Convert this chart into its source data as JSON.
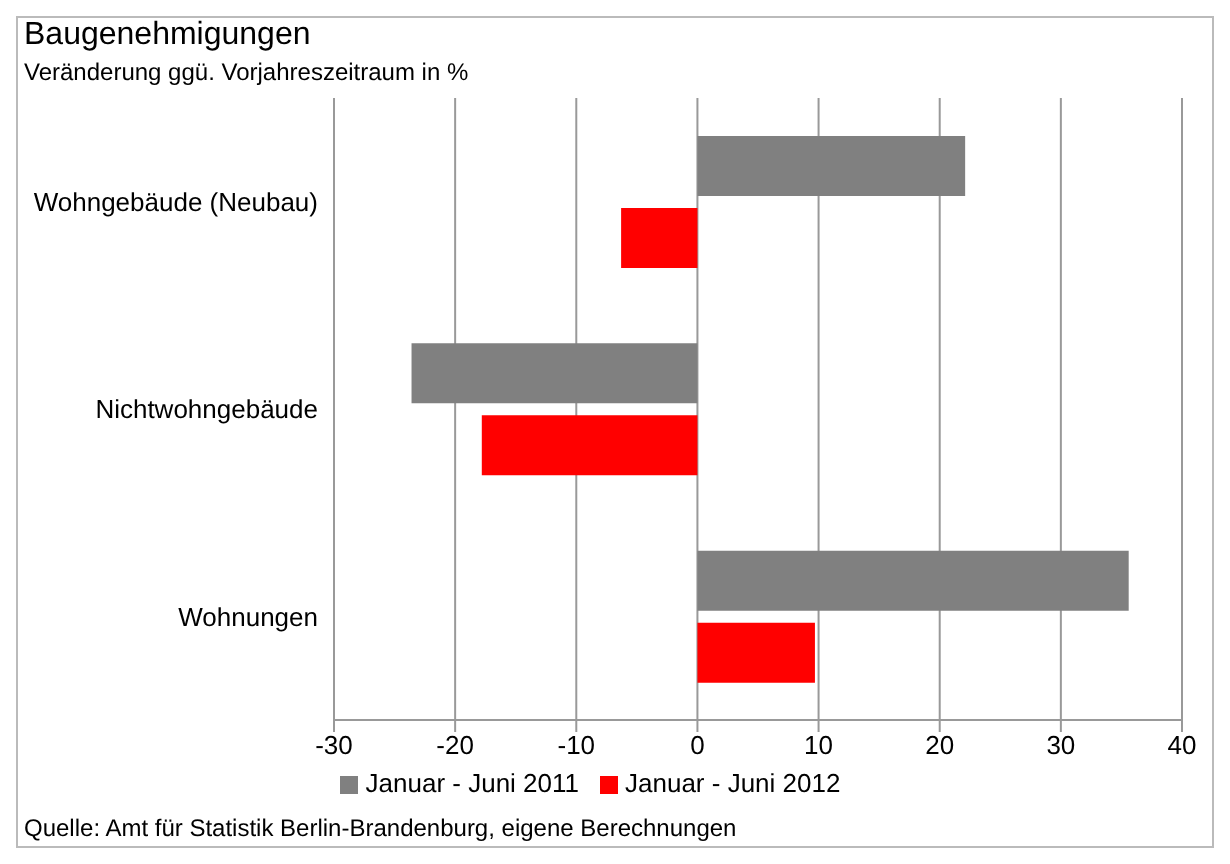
{
  "chart_data": {
    "type": "bar",
    "orientation": "horizontal",
    "title": "Baugenehmigungen",
    "subtitle": "Veränderung ggü. Vorjahreszeitraum in %",
    "categories": [
      "Wohngebäude (Neubau)",
      "Nichtwohngebäude",
      "Wohnungen"
    ],
    "series": [
      {
        "name": "Januar - Juni 2011",
        "color": "#808080",
        "values": [
          22.1,
          -23.6,
          35.6
        ]
      },
      {
        "name": "Januar - Juni 2012",
        "color": "#ff0000",
        "values": [
          -6.3,
          -17.8,
          9.7
        ]
      }
    ],
    "xlim": [
      -30,
      40
    ],
    "xticks": [
      -30,
      -20,
      -10,
      0,
      10,
      20,
      30,
      40
    ],
    "grid": "x",
    "legend": "bottom",
    "annotations": [
      "Quelle: Amt für Statistik Berlin-Brandenburg, eigene Berechnungen"
    ]
  }
}
